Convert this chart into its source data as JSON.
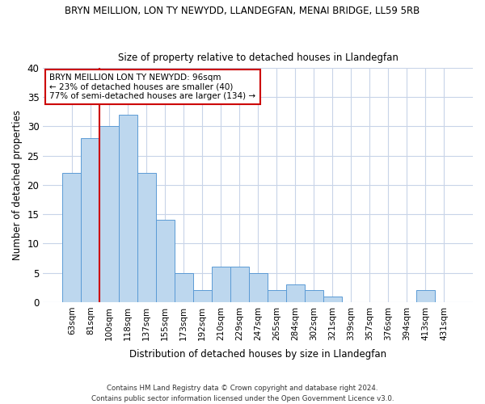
{
  "title1": "BRYN MEILLION, LON TY NEWYDD, LLANDEGFAN, MENAI BRIDGE, LL59 5RB",
  "title2": "Size of property relative to detached houses in Llandegfan",
  "xlabel": "Distribution of detached houses by size in Llandegfan",
  "ylabel": "Number of detached properties",
  "categories": [
    "63sqm",
    "81sqm",
    "100sqm",
    "118sqm",
    "137sqm",
    "155sqm",
    "173sqm",
    "192sqm",
    "210sqm",
    "229sqm",
    "247sqm",
    "265sqm",
    "284sqm",
    "302sqm",
    "321sqm",
    "339sqm",
    "357sqm",
    "376sqm",
    "394sqm",
    "413sqm",
    "431sqm"
  ],
  "values": [
    22,
    28,
    30,
    32,
    22,
    14,
    5,
    2,
    6,
    6,
    5,
    2,
    3,
    2,
    1,
    0,
    0,
    0,
    0,
    2,
    0
  ],
  "bar_color": "#bdd7ee",
  "bar_edge_color": "#5b9bd5",
  "grid_color": "#c8d4e8",
  "annotation_text_line1": "BRYN MEILLION LON TY NEWYDD: 96sqm",
  "annotation_text_line2": "← 23% of detached houses are smaller (40)",
  "annotation_text_line3": "77% of semi-detached houses are larger (134) →",
  "vline_color": "#cc0000",
  "annotation_box_color": "#ffffff",
  "annotation_box_edge": "#cc0000",
  "footer": "Contains HM Land Registry data © Crown copyright and database right 2024.\nContains public sector information licensed under the Open Government Licence v3.0.",
  "ylim": [
    0,
    40
  ],
  "yticks": [
    0,
    5,
    10,
    15,
    20,
    25,
    30,
    35,
    40
  ],
  "vline_x": 1.5
}
